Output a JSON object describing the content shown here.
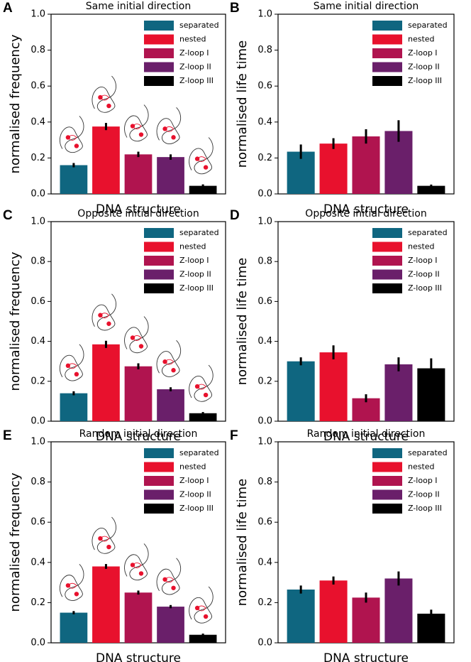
{
  "chart_data": [
    {
      "type": "bar",
      "panel": "A",
      "title": "Same initial direction",
      "xlabel": "DNA structure",
      "ylabel": "normalised frequency",
      "ylim": [
        0,
        1
      ],
      "yticks": [
        {
          "value": 0,
          "label": "0.0"
        },
        0.2,
        0.4,
        0.6,
        0.8,
        {
          "value": 1,
          "label": "1.0"
        }
      ],
      "legend": "upper right",
      "series": [
        {
          "name": "separated",
          "color": "#0f6680",
          "values": [
            0.16
          ],
          "errors": [
            0.012
          ]
        },
        {
          "name": "nested",
          "color": "#e8112d",
          "values": [
            0.375
          ],
          "errors": [
            0.02
          ]
        },
        {
          "name": "Z-loop I",
          "color": "#b0144f",
          "values": [
            0.22
          ],
          "errors": [
            0.015
          ]
        },
        {
          "name": "Z-loop II",
          "color": "#6a1f6a",
          "values": [
            0.205
          ],
          "errors": [
            0.015
          ]
        },
        {
          "name": "Z-loop III",
          "color": "#000000",
          "values": [
            0.045
          ],
          "errors": [
            0.008
          ]
        }
      ]
    },
    {
      "type": "bar",
      "panel": "B",
      "title": "Same initial direction",
      "xlabel": "DNA structure",
      "ylabel": "normalised life time",
      "ylim": [
        0,
        1
      ],
      "yticks": [
        {
          "value": 0,
          "label": "0.0"
        },
        0.2,
        0.4,
        0.6,
        0.8,
        {
          "value": 1,
          "label": "1.0"
        }
      ],
      "legend": "upper right",
      "series": [
        {
          "name": "separated",
          "color": "#0f6680",
          "values": [
            0.235
          ],
          "errors": [
            0.04
          ]
        },
        {
          "name": "nested",
          "color": "#e8112d",
          "values": [
            0.28
          ],
          "errors": [
            0.03
          ]
        },
        {
          "name": "Z-loop I",
          "color": "#b0144f",
          "values": [
            0.32
          ],
          "errors": [
            0.04
          ]
        },
        {
          "name": "Z-loop II",
          "color": "#6a1f6a",
          "values": [
            0.35
          ],
          "errors": [
            0.06
          ]
        },
        {
          "name": "Z-loop III",
          "color": "#000000",
          "values": [
            0.045
          ],
          "errors": [
            0.007
          ]
        }
      ]
    },
    {
      "type": "bar",
      "panel": "C",
      "title": "Opposite initial direction",
      "xlabel": "DNA structure",
      "ylabel": "normalised frequency",
      "ylim": [
        0,
        1
      ],
      "yticks": [
        {
          "value": 0,
          "label": "0.0"
        },
        0.2,
        0.4,
        0.6,
        0.8,
        {
          "value": 1,
          "label": "1.0"
        }
      ],
      "legend": "upper right",
      "series": [
        {
          "name": "separated",
          "color": "#0f6680",
          "values": [
            0.14
          ],
          "errors": [
            0.01
          ]
        },
        {
          "name": "nested",
          "color": "#e8112d",
          "values": [
            0.385
          ],
          "errors": [
            0.018
          ]
        },
        {
          "name": "Z-loop I",
          "color": "#b0144f",
          "values": [
            0.275
          ],
          "errors": [
            0.015
          ]
        },
        {
          "name": "Z-loop II",
          "color": "#6a1f6a",
          "values": [
            0.16
          ],
          "errors": [
            0.01
          ]
        },
        {
          "name": "Z-loop III",
          "color": "#000000",
          "values": [
            0.04
          ],
          "errors": [
            0.006
          ]
        }
      ]
    },
    {
      "type": "bar",
      "panel": "D",
      "title": "Opposite initial direction",
      "xlabel": "DNA structure",
      "ylabel": "normalised life time",
      "ylim": [
        0,
        1
      ],
      "yticks": [
        {
          "value": 0,
          "label": "0.0"
        },
        0.2,
        0.4,
        0.6,
        0.8,
        {
          "value": 1,
          "label": "1.0"
        }
      ],
      "legend": "upper right",
      "series": [
        {
          "name": "separated",
          "color": "#0f6680",
          "values": [
            0.3
          ],
          "errors": [
            0.02
          ]
        },
        {
          "name": "nested",
          "color": "#e8112d",
          "values": [
            0.345
          ],
          "errors": [
            0.035
          ]
        },
        {
          "name": "Z-loop I",
          "color": "#b0144f",
          "values": [
            0.115
          ],
          "errors": [
            0.02
          ]
        },
        {
          "name": "Z-loop II",
          "color": "#6a1f6a",
          "values": [
            0.285
          ],
          "errors": [
            0.035
          ]
        },
        {
          "name": "Z-loop III",
          "color": "#000000",
          "values": [
            0.265
          ],
          "errors": [
            0.05
          ]
        }
      ]
    },
    {
      "type": "bar",
      "panel": "E",
      "title": "Random initial direction",
      "xlabel": "DNA structure",
      "ylabel": "normalised frequency",
      "ylim": [
        0,
        1
      ],
      "yticks": [
        {
          "value": 0,
          "label": "0.0"
        },
        0.2,
        0.4,
        0.6,
        0.8,
        {
          "value": 1,
          "label": "1.0"
        }
      ],
      "legend": "upper right",
      "series": [
        {
          "name": "separated",
          "color": "#0f6680",
          "values": [
            0.15
          ],
          "errors": [
            0.008
          ]
        },
        {
          "name": "nested",
          "color": "#e8112d",
          "values": [
            0.38
          ],
          "errors": [
            0.012
          ]
        },
        {
          "name": "Z-loop I",
          "color": "#b0144f",
          "values": [
            0.25
          ],
          "errors": [
            0.01
          ]
        },
        {
          "name": "Z-loop II",
          "color": "#6a1f6a",
          "values": [
            0.18
          ],
          "errors": [
            0.008
          ]
        },
        {
          "name": "Z-loop III",
          "color": "#000000",
          "values": [
            0.04
          ],
          "errors": [
            0.006
          ]
        }
      ]
    },
    {
      "type": "bar",
      "panel": "F",
      "title": "Random initial direction",
      "xlabel": "DNA structure",
      "ylabel": "normalised life time",
      "ylim": [
        0,
        1
      ],
      "yticks": [
        {
          "value": 0,
          "label": "0.0"
        },
        0.2,
        0.4,
        0.6,
        0.8,
        {
          "value": 1,
          "label": "1.0"
        }
      ],
      "legend": "upper right",
      "series": [
        {
          "name": "separated",
          "color": "#0f6680",
          "values": [
            0.265
          ],
          "errors": [
            0.02
          ]
        },
        {
          "name": "nested",
          "color": "#e8112d",
          "values": [
            0.31
          ],
          "errors": [
            0.02
          ]
        },
        {
          "name": "Z-loop I",
          "color": "#b0144f",
          "values": [
            0.225
          ],
          "errors": [
            0.025
          ]
        },
        {
          "name": "Z-loop II",
          "color": "#6a1f6a",
          "values": [
            0.32
          ],
          "errors": [
            0.035
          ]
        },
        {
          "name": "Z-loop III",
          "color": "#000000",
          "values": [
            0.145
          ],
          "errors": [
            0.02
          ]
        }
      ]
    }
  ]
}
